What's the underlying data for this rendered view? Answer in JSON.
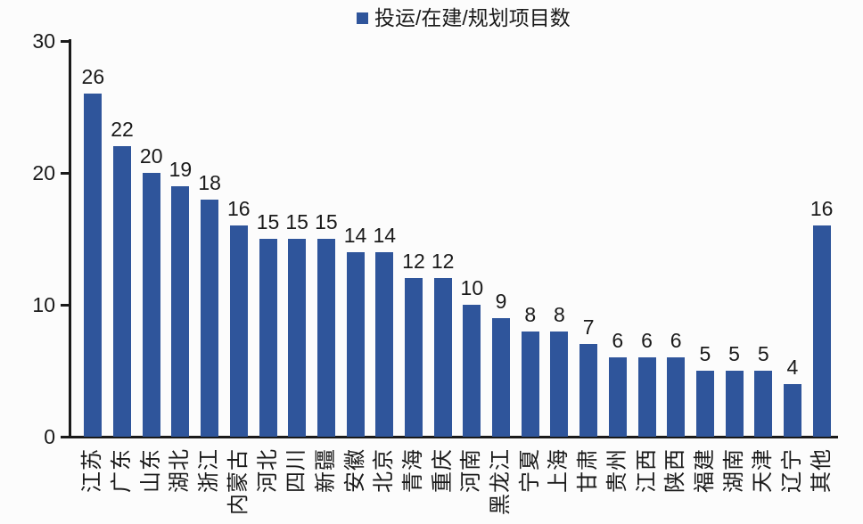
{
  "chart_data": {
    "type": "bar",
    "legend": "投运/在建/规划项目数",
    "legend_position": "top-center",
    "bar_color": "#2F559B",
    "text_color": "#1a1a1a",
    "categories": [
      "江苏",
      "广东",
      "山东",
      "湖北",
      "浙江",
      "内蒙古",
      "河北",
      "四川",
      "新疆",
      "安徽",
      "北京",
      "青海",
      "重庆",
      "河南",
      "黑龙江",
      "宁夏",
      "上海",
      "甘肃",
      "贵州",
      "江西",
      "陕西",
      "福建",
      "湖南",
      "天津",
      "辽宁",
      "其他"
    ],
    "values": [
      26,
      22,
      20,
      19,
      18,
      16,
      15,
      15,
      15,
      14,
      14,
      12,
      12,
      10,
      9,
      8,
      8,
      7,
      6,
      6,
      6,
      5,
      5,
      5,
      4,
      16
    ],
    "xlabel": "",
    "ylabel": "",
    "ylim": [
      0,
      30
    ],
    "yticks": [
      0,
      10,
      20,
      30
    ],
    "grid": false,
    "data_labels": true
  }
}
